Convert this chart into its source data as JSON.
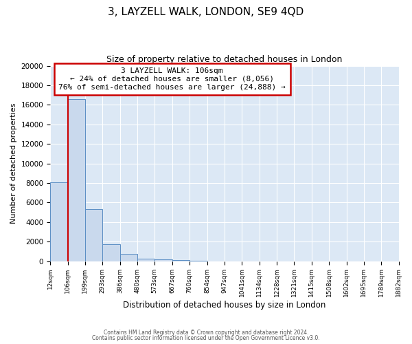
{
  "title": "3, LAYZELL WALK, LONDON, SE9 4QD",
  "subtitle": "Size of property relative to detached houses in London",
  "xlabel": "Distribution of detached houses by size in London",
  "ylabel": "Number of detached properties",
  "bin_labels": [
    "12sqm",
    "106sqm",
    "199sqm",
    "293sqm",
    "386sqm",
    "480sqm",
    "573sqm",
    "667sqm",
    "760sqm",
    "854sqm",
    "947sqm",
    "1041sqm",
    "1134sqm",
    "1228sqm",
    "1321sqm",
    "1415sqm",
    "1508sqm",
    "1602sqm",
    "1695sqm",
    "1789sqm",
    "1882sqm"
  ],
  "bar_values": [
    8100,
    16600,
    5300,
    1750,
    750,
    280,
    180,
    100,
    60,
    0,
    0,
    0,
    0,
    0,
    0,
    0,
    0,
    0,
    0,
    0
  ],
  "bar_color": "#c9d9ed",
  "bar_edge_color": "#5b8ec4",
  "bin_edges": [
    12,
    106,
    199,
    293,
    386,
    480,
    573,
    667,
    760,
    854,
    947,
    1041,
    1134,
    1228,
    1321,
    1415,
    1508,
    1602,
    1695,
    1789,
    1882
  ],
  "annotation_title": "3 LAYZELL WALK: 106sqm",
  "annotation_line1": "← 24% of detached houses are smaller (8,056)",
  "annotation_line2": "76% of semi-detached houses are larger (24,888) →",
  "annotation_box_color": "#ffffff",
  "annotation_box_edge": "#cc0000",
  "red_line_color": "#cc0000",
  "ylim": [
    0,
    20000
  ],
  "yticks": [
    0,
    2000,
    4000,
    6000,
    8000,
    10000,
    12000,
    14000,
    16000,
    18000,
    20000
  ],
  "footer1": "Contains HM Land Registry data © Crown copyright and database right 2024.",
  "footer2": "Contains public sector information licensed under the Open Government Licence v3.0.",
  "plot_bg_color": "#dce8f5"
}
